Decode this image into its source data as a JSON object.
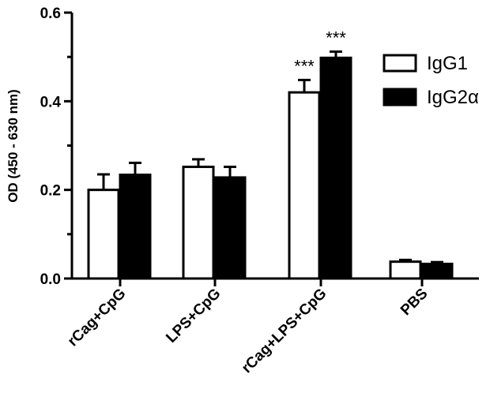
{
  "chart_data": {
    "type": "bar",
    "title": "",
    "xlabel": "",
    "ylabel": "OD (450 - 630 nm)",
    "ylim": [
      0,
      0.6
    ],
    "yticks": [
      "0.0",
      "0.2",
      "0.4",
      "0.6"
    ],
    "categories": [
      "rCag+CpG",
      "LPS+CpG",
      "rCag+LPS+CpG",
      "PBS"
    ],
    "series": [
      {
        "name": "IgG1",
        "values": [
          0.2,
          0.252,
          0.42,
          0.038
        ],
        "errors": [
          0.035,
          0.017,
          0.028,
          0.004
        ],
        "fill": "#ffffff",
        "stroke": "#000000"
      },
      {
        "name": "IgG2α",
        "values": [
          0.234,
          0.228,
          0.498,
          0.033
        ],
        "errors": [
          0.027,
          0.024,
          0.014,
          0.004
        ],
        "fill": "#000000",
        "stroke": "#000000"
      }
    ],
    "annotations": [
      {
        "category": 2,
        "series": 0,
        "text": "***"
      },
      {
        "category": 2,
        "series": 1,
        "text": "***"
      }
    ],
    "legend_position": "top-right",
    "grid": false
  }
}
